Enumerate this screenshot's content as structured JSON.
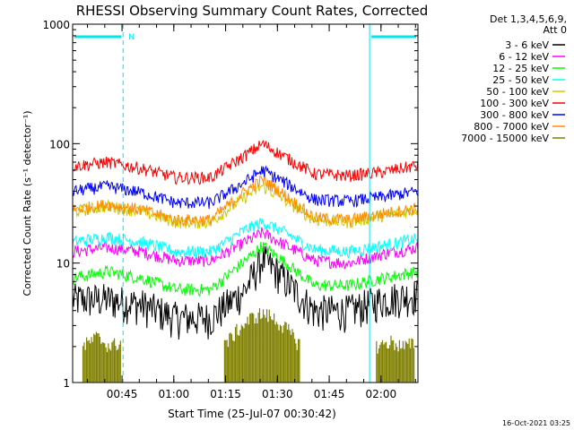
{
  "chart_data": {
    "type": "line",
    "title": "RHESSI Observing Summary Count Rates, Corrected",
    "xlabel": "Start Time (25-Jul-07 00:30:42)",
    "ylabel": "Corrected Count Rate (s⁻¹ detector⁻¹)",
    "yscale": "log",
    "ylim": [
      1,
      1000
    ],
    "xlim_minutes": [
      0,
      100
    ],
    "x_tick_labels": [
      "00:45",
      "01:00",
      "01:15",
      "01:30",
      "01:45",
      "02:00"
    ],
    "y_tick_labels": [
      "1",
      "10",
      "100",
      "1000"
    ],
    "legend_header": [
      "Det 1,3,4,5,6,9,",
      "Att 0"
    ],
    "legend_position": "right",
    "timestamp": "16-Oct-2021 03:25",
    "night_flag": "N",
    "night_intervals_minutes": [
      [
        0,
        14.6
      ],
      [
        86.0,
        100
      ]
    ],
    "series": [
      {
        "name": "3 - 6 keV",
        "color": "#000000",
        "x": [
          0,
          10,
          20,
          30,
          40,
          50,
          55,
          60,
          70,
          80,
          90,
          100
        ],
        "y": [
          5,
          5,
          4.5,
          3.5,
          3.5,
          6,
          11,
          8,
          4,
          4,
          5,
          5.5
        ]
      },
      {
        "name": "6 - 12 keV",
        "color": "#ff00ff",
        "x": [
          0,
          10,
          20,
          30,
          40,
          50,
          55,
          60,
          70,
          80,
          90,
          100
        ],
        "y": [
          12.5,
          13.5,
          12.5,
          10.5,
          10.5,
          15,
          18,
          15,
          10.5,
          10,
          12,
          13.5
        ]
      },
      {
        "name": "12 - 25 keV",
        "color": "#00ff00",
        "x": [
          0,
          10,
          20,
          30,
          40,
          50,
          55,
          60,
          70,
          80,
          90,
          100
        ],
        "y": [
          7.5,
          8.5,
          7.5,
          6,
          6,
          10.5,
          14,
          11,
          6.5,
          6.5,
          7.5,
          8.5
        ]
      },
      {
        "name": "25 - 50 keV",
        "color": "#00ffff",
        "x": [
          0,
          10,
          20,
          30,
          40,
          50,
          55,
          60,
          70,
          80,
          90,
          100
        ],
        "y": [
          15,
          16.5,
          15,
          12.5,
          12.5,
          19,
          22,
          19,
          13,
          12.5,
          14,
          16
        ]
      },
      {
        "name": "50 - 100 keV",
        "color": "#cccc00",
        "x": [
          0,
          10,
          20,
          30,
          40,
          50,
          55,
          60,
          70,
          80,
          90,
          100
        ],
        "y": [
          27,
          30,
          27,
          22,
          22,
          36,
          44,
          36,
          23,
          22,
          25,
          28
        ]
      },
      {
        "name": "100 - 300 keV",
        "color": "#ff0000",
        "x": [
          0,
          10,
          20,
          30,
          40,
          50,
          55,
          60,
          70,
          80,
          90,
          100
        ],
        "y": [
          65,
          70,
          62,
          52,
          52,
          80,
          100,
          82,
          56,
          54,
          58,
          66
        ]
      },
      {
        "name": "300 - 800 keV",
        "color": "#0000ff",
        "x": [
          0,
          10,
          20,
          30,
          40,
          50,
          55,
          60,
          70,
          80,
          90,
          100
        ],
        "y": [
          40,
          44,
          39,
          32,
          32,
          48,
          60,
          50,
          34,
          33,
          36,
          40
        ]
      },
      {
        "name": "800 - 7000 keV",
        "color": "#ff8c00",
        "x": [
          0,
          10,
          20,
          30,
          40,
          50,
          55,
          60,
          70,
          80,
          90,
          100
        ],
        "y": [
          28,
          31,
          28,
          23,
          23,
          40,
          50,
          40,
          24,
          23,
          26,
          29
        ]
      },
      {
        "name": "7000 - 15000 keV",
        "color": "#808000",
        "x": [
          3,
          7,
          11,
          14,
          45,
          48,
          52,
          55,
          58,
          62,
          65,
          88,
          92,
          96,
          99
        ],
        "y": [
          2,
          2.4,
          2,
          2.2,
          2.2,
          2.8,
          3.5,
          3.8,
          3.5,
          2.8,
          2.2,
          2,
          2.2,
          2,
          2.1
        ]
      }
    ]
  }
}
